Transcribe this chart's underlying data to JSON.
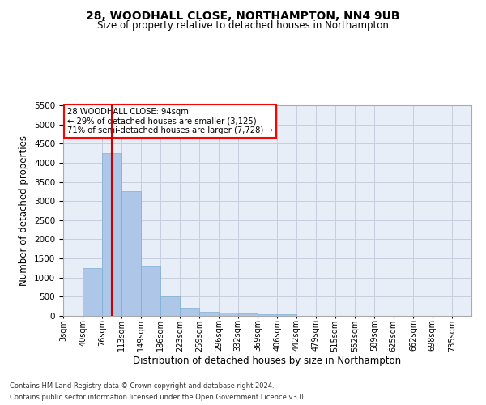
{
  "title_line1": "28, WOODHALL CLOSE, NORTHAMPTON, NN4 9UB",
  "title_line2": "Size of property relative to detached houses in Northampton",
  "xlabel": "Distribution of detached houses by size in Northampton",
  "ylabel": "Number of detached properties",
  "footnote1": "Contains HM Land Registry data © Crown copyright and database right 2024.",
  "footnote2": "Contains public sector information licensed under the Open Government Licence v3.0.",
  "annotation_line1": "28 WOODHALL CLOSE: 94sqm",
  "annotation_line2": "← 29% of detached houses are smaller (3,125)",
  "annotation_line3": "71% of semi-detached houses are larger (7,728) →",
  "bar_color": "#aec6e8",
  "bar_edge_color": "#7aafd4",
  "ref_line_color": "#cc0000",
  "ref_line_x": 94,
  "categories": [
    "3sqm",
    "40sqm",
    "76sqm",
    "113sqm",
    "149sqm",
    "186sqm",
    "223sqm",
    "259sqm",
    "296sqm",
    "332sqm",
    "369sqm",
    "406sqm",
    "442sqm",
    "479sqm",
    "515sqm",
    "552sqm",
    "589sqm",
    "625sqm",
    "662sqm",
    "698sqm",
    "735sqm"
  ],
  "bin_edges": [
    3,
    40,
    76,
    113,
    149,
    186,
    223,
    259,
    296,
    332,
    369,
    406,
    442,
    479,
    515,
    552,
    589,
    625,
    662,
    698,
    735
  ],
  "bin_width": 37,
  "values": [
    0,
    1250,
    4250,
    3250,
    1300,
    500,
    220,
    110,
    80,
    60,
    50,
    50,
    0,
    0,
    0,
    0,
    0,
    0,
    0,
    0,
    0
  ],
  "ylim": [
    0,
    5500
  ],
  "yticks": [
    0,
    500,
    1000,
    1500,
    2000,
    2500,
    3000,
    3500,
    4000,
    4500,
    5000,
    5500
  ],
  "background_color": "#e8eef8",
  "grid_color": "#c8cedd",
  "fig_width": 6.0,
  "fig_height": 5.0,
  "dpi": 100
}
